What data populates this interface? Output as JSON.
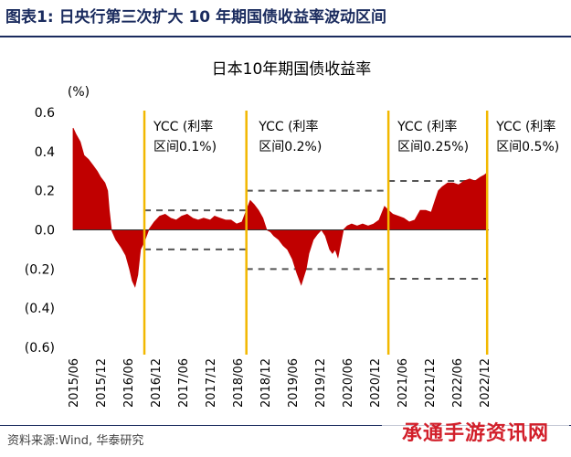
{
  "header": {
    "figure_label": "图表1:",
    "figure_title": "日央行第三次扩大 10 年期国债收益率波动区间"
  },
  "footer": {
    "source": "资料来源:Wind, 华泰研究",
    "watermark": "承通手游资讯网"
  },
  "colors": {
    "fill": "#c00000",
    "ycc_line": "#f2b800",
    "band": "#555555",
    "title": "#1a2b5e"
  },
  "chart_data": {
    "type": "area",
    "title": "日本10年期国债收益率",
    "ylabel": "(%)",
    "ylim": [
      -0.6,
      0.6
    ],
    "yticks": [
      0.6,
      0.4,
      0.2,
      0.0,
      -0.2,
      -0.4,
      -0.6
    ],
    "ytick_labels": [
      "0.6",
      "0.4",
      "0.2",
      "0.0",
      "(0.2)",
      "(0.4)",
      "(0.6)"
    ],
    "x_range": [
      2015.42,
      2023.0
    ],
    "xticks": [
      {
        "label": "2015/06",
        "t": 2015.42
      },
      {
        "label": "2015/12",
        "t": 2015.92
      },
      {
        "label": "2016/06",
        "t": 2016.42
      },
      {
        "label": "2016/12",
        "t": 2016.92
      },
      {
        "label": "2017/06",
        "t": 2017.42
      },
      {
        "label": "2017/12",
        "t": 2017.92
      },
      {
        "label": "2018/06",
        "t": 2018.42
      },
      {
        "label": "2018/12",
        "t": 2018.92
      },
      {
        "label": "2019/06",
        "t": 2019.42
      },
      {
        "label": "2019/12",
        "t": 2019.92
      },
      {
        "label": "2020/06",
        "t": 2020.42
      },
      {
        "label": "2020/12",
        "t": 2020.92
      },
      {
        "label": "2021/06",
        "t": 2021.42
      },
      {
        "label": "2021/12",
        "t": 2021.92
      },
      {
        "label": "2022/06",
        "t": 2022.42
      },
      {
        "label": "2022/12",
        "t": 2022.92
      }
    ],
    "ycc_lines": [
      2016.72,
      2018.58,
      2021.17,
      2022.97
    ],
    "annotations": [
      {
        "line1": "YCC (利率",
        "line2": "区间0.1%)",
        "t": 2016.72
      },
      {
        "line1": "YCC (利率",
        "line2": "区间0.2%)",
        "t": 2018.64
      },
      {
        "line1": "YCC (利率",
        "line2": "区间0.25%)",
        "t": 2021.17
      },
      {
        "line1": "YCC (利率",
        "line2": "区间0.5%)",
        "t": 2022.97
      }
    ],
    "bands": [
      {
        "from": 2016.72,
        "to": 2018.58,
        "upper": 0.1,
        "lower": -0.1
      },
      {
        "from": 2018.58,
        "to": 2021.17,
        "upper": 0.2,
        "lower": -0.2
      },
      {
        "from": 2021.17,
        "to": 2022.97,
        "upper": 0.25,
        "lower": -0.25
      }
    ],
    "series": [
      {
        "name": "日本10年期国债收益率",
        "x": [
          2015.42,
          2015.47,
          2015.55,
          2015.62,
          2015.7,
          2015.78,
          2015.86,
          2015.92,
          2016.0,
          2016.05,
          2016.08,
          2016.12,
          2016.2,
          2016.3,
          2016.38,
          2016.45,
          2016.5,
          2016.55,
          2016.6,
          2016.65,
          2016.72,
          2016.8,
          2016.9,
          2017.0,
          2017.1,
          2017.2,
          2017.3,
          2017.4,
          2017.5,
          2017.6,
          2017.7,
          2017.8,
          2017.92,
          2018.0,
          2018.1,
          2018.2,
          2018.3,
          2018.4,
          2018.5,
          2018.58,
          2018.65,
          2018.72,
          2018.8,
          2018.88,
          2018.95,
          2019.02,
          2019.08,
          2019.17,
          2019.25,
          2019.33,
          2019.42,
          2019.5,
          2019.58,
          2019.67,
          2019.72,
          2019.8,
          2019.88,
          2019.95,
          2020.02,
          2020.1,
          2020.15,
          2020.2,
          2020.25,
          2020.3,
          2020.35,
          2020.42,
          2020.5,
          2020.6,
          2020.7,
          2020.8,
          2020.9,
          2021.0,
          2021.1,
          2021.17,
          2021.25,
          2021.35,
          2021.45,
          2021.55,
          2021.65,
          2021.75,
          2021.85,
          2021.95,
          2022.02,
          2022.08,
          2022.15,
          2022.25,
          2022.35,
          2022.45,
          2022.55,
          2022.65,
          2022.75,
          2022.85,
          2022.92,
          2022.96,
          2022.98
        ],
        "y": [
          0.52,
          0.49,
          0.45,
          0.38,
          0.36,
          0.33,
          0.3,
          0.27,
          0.24,
          0.2,
          0.1,
          0.0,
          -0.05,
          -0.09,
          -0.13,
          -0.2,
          -0.26,
          -0.29,
          -0.23,
          -0.1,
          -0.06,
          0.0,
          0.04,
          0.07,
          0.08,
          0.06,
          0.05,
          0.07,
          0.08,
          0.06,
          0.05,
          0.06,
          0.05,
          0.07,
          0.06,
          0.05,
          0.05,
          0.03,
          0.04,
          0.1,
          0.15,
          0.13,
          0.1,
          0.06,
          0.0,
          -0.01,
          -0.03,
          -0.05,
          -0.08,
          -0.1,
          -0.15,
          -0.22,
          -0.28,
          -0.2,
          -0.12,
          -0.05,
          -0.02,
          0.0,
          -0.03,
          -0.1,
          -0.12,
          -0.1,
          -0.14,
          -0.07,
          0.0,
          0.02,
          0.03,
          0.02,
          0.03,
          0.02,
          0.03,
          0.05,
          0.12,
          0.1,
          0.08,
          0.07,
          0.06,
          0.04,
          0.05,
          0.1,
          0.1,
          0.09,
          0.15,
          0.2,
          0.22,
          0.24,
          0.24,
          0.23,
          0.25,
          0.26,
          0.25,
          0.27,
          0.28,
          0.29,
          0.3
        ]
      }
    ]
  }
}
